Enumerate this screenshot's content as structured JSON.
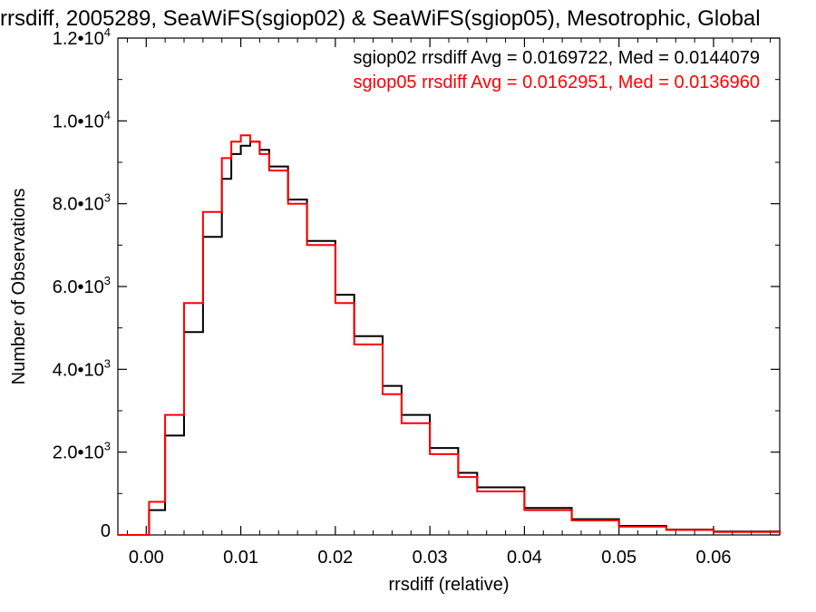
{
  "chart_data": {
    "type": "line",
    "title": "rrsdiff, 2005289, SeaWiFS(sgiop02) & SeaWiFS(sgiop05), Mesotrophic, Global",
    "xlabel": "rrsdiff (relative)",
    "ylabel": "Number of Observations",
    "xlim": [
      -0.003,
      0.067
    ],
    "ylim": [
      0,
      12000
    ],
    "x_ticks": [
      {
        "value": 0.0,
        "label": "0.00"
      },
      {
        "value": 0.01,
        "label": "0.01"
      },
      {
        "value": 0.02,
        "label": "0.02"
      },
      {
        "value": 0.03,
        "label": "0.03"
      },
      {
        "value": 0.04,
        "label": "0.04"
      },
      {
        "value": 0.05,
        "label": "0.05"
      },
      {
        "value": 0.06,
        "label": "0.06"
      }
    ],
    "y_ticks": [
      {
        "value": 0,
        "mant": "0",
        "exp": ""
      },
      {
        "value": 2000,
        "mant": "2.0•10",
        "exp": "3"
      },
      {
        "value": 4000,
        "mant": "4.0•10",
        "exp": "3"
      },
      {
        "value": 6000,
        "mant": "6.0•10",
        "exp": "3"
      },
      {
        "value": 8000,
        "mant": "8.0•10",
        "exp": "3"
      },
      {
        "value": 10000,
        "mant": "1.0•10",
        "exp": "4"
      },
      {
        "value": 12000,
        "mant": "1.2•10",
        "exp": "4"
      }
    ],
    "grid": false,
    "legend_position": "top-right",
    "x": [
      -0.003,
      0.0,
      0.0003,
      0.002,
      0.004,
      0.006,
      0.008,
      0.009,
      0.01,
      0.011,
      0.012,
      0.013,
      0.015,
      0.017,
      0.02,
      0.022,
      0.025,
      0.027,
      0.03,
      0.033,
      0.035,
      0.04,
      0.045,
      0.05,
      0.055,
      0.06,
      0.067
    ],
    "series": [
      {
        "name": "sgiop02",
        "color": "#000000",
        "legend": "sgiop02 rrsdiff Avg = 0.0169722, Med = 0.0144079",
        "values": [
          0,
          0,
          600,
          2400,
          4900,
          7200,
          8600,
          9200,
          9400,
          9500,
          9300,
          8900,
          8100,
          7100,
          5800,
          4800,
          3600,
          2900,
          2100,
          1500,
          1150,
          650,
          380,
          220,
          130,
          80,
          30
        ]
      },
      {
        "name": "sgiop05",
        "color": "#ff0000",
        "legend": "sgiop05 rrsdiff Avg = 0.0162951, Med = 0.0136960",
        "values": [
          0,
          0,
          800,
          2900,
          5600,
          7800,
          9100,
          9500,
          9650,
          9500,
          9200,
          8800,
          8000,
          7000,
          5600,
          4600,
          3400,
          2700,
          1950,
          1400,
          1050,
          600,
          350,
          200,
          120,
          70,
          25
        ]
      }
    ]
  }
}
